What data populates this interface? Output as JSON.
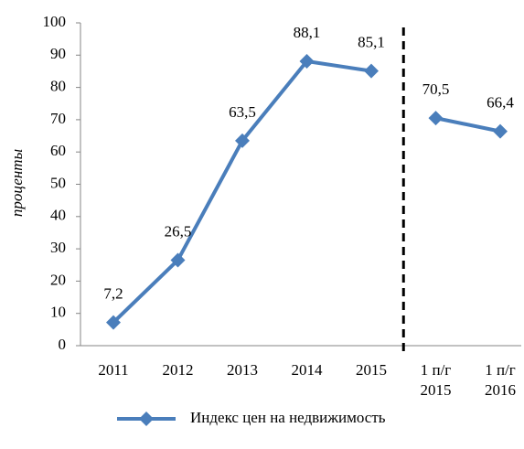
{
  "chart_data": {
    "type": "line",
    "categories": [
      "2011",
      "2012",
      "2013",
      "2014",
      "2015",
      "1 п/г 2015",
      "1 п/г 2016"
    ],
    "series": [
      {
        "name": "Индекс цен на недвижимость",
        "color": "#4a7ebb",
        "values": [
          7.2,
          26.5,
          63.5,
          88.1,
          85.1,
          70.5,
          66.4
        ],
        "value_labels": [
          "7,2",
          "26,5",
          "63,5",
          "88,1",
          "85,1",
          "70,5",
          "66,4"
        ]
      }
    ],
    "ylabel": "проценты",
    "ylim": [
      0,
      100
    ],
    "yticks": [
      0,
      10,
      20,
      30,
      40,
      50,
      60,
      70,
      80,
      90,
      100
    ],
    "separator_after": 4,
    "legend": "bottom",
    "grid": false
  }
}
